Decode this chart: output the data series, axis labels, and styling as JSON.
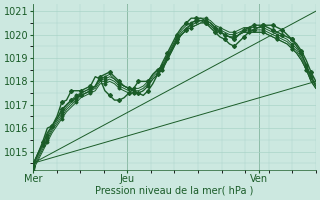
{
  "xlabel": "Pression niveau de la mer( hPa )",
  "bg_color": "#cce8e0",
  "grid_color": "#aad4c8",
  "line_color": "#1a5c28",
  "ylim": [
    1014.2,
    1021.3
  ],
  "xlim": [
    0,
    60
  ],
  "yticks": [
    1015,
    1016,
    1017,
    1018,
    1019,
    1020,
    1021
  ],
  "day_ticks": [
    0,
    20,
    48
  ],
  "day_labels": [
    "Mer",
    "Jeu",
    "Ven"
  ],
  "ensemble_lines": [
    [
      1014.4,
      1014.8,
      1015.2,
      1015.6,
      1016.0,
      1016.3,
      1016.6,
      1016.9,
      1017.1,
      1017.3,
      1017.5,
      1017.6,
      1017.7,
      1017.8,
      1018.1,
      1018.1,
      1018.2,
      1018.1,
      1017.9,
      1017.8,
      1017.7,
      1017.6,
      1017.6,
      1017.7,
      1017.9,
      1018.2,
      1018.4,
      1018.6,
      1019.0,
      1019.4,
      1019.8,
      1020.1,
      1020.3,
      1020.4,
      1020.5,
      1020.6,
      1020.6,
      1020.5,
      1020.3,
      1020.2,
      1020.1,
      1020.0,
      1020.0,
      1020.1,
      1020.2,
      1020.2,
      1020.2,
      1020.2,
      1020.2,
      1020.1,
      1020.0,
      1019.9,
      1019.8,
      1019.7,
      1019.5,
      1019.3,
      1019.0,
      1018.6,
      1018.1,
      1017.8
    ],
    [
      1014.3,
      1014.7,
      1015.1,
      1015.5,
      1015.9,
      1016.2,
      1016.5,
      1016.8,
      1017.0,
      1017.2,
      1017.4,
      1017.5,
      1017.6,
      1017.7,
      1018.0,
      1018.0,
      1018.1,
      1018.0,
      1017.8,
      1017.7,
      1017.6,
      1017.5,
      1017.5,
      1017.6,
      1017.8,
      1018.1,
      1018.3,
      1018.5,
      1018.9,
      1019.3,
      1019.7,
      1020.0,
      1020.2,
      1020.3,
      1020.4,
      1020.5,
      1020.5,
      1020.4,
      1020.2,
      1020.1,
      1020.0,
      1019.9,
      1019.9,
      1020.0,
      1020.1,
      1020.1,
      1020.1,
      1020.1,
      1020.1,
      1020.0,
      1019.9,
      1019.8,
      1019.7,
      1019.6,
      1019.4,
      1019.2,
      1018.9,
      1018.5,
      1018.0,
      1017.7
    ],
    [
      1014.5,
      1014.9,
      1015.3,
      1015.7,
      1016.1,
      1016.4,
      1016.7,
      1017.0,
      1017.2,
      1017.4,
      1017.5,
      1017.6,
      1017.7,
      1017.8,
      1018.1,
      1018.2,
      1018.3,
      1018.1,
      1017.9,
      1017.8,
      1017.7,
      1017.7,
      1017.7,
      1017.8,
      1018.0,
      1018.3,
      1018.5,
      1018.7,
      1019.1,
      1019.5,
      1019.9,
      1020.2,
      1020.4,
      1020.5,
      1020.6,
      1020.7,
      1020.7,
      1020.6,
      1020.4,
      1020.3,
      1020.2,
      1020.1,
      1020.1,
      1020.2,
      1020.3,
      1020.3,
      1020.3,
      1020.3,
      1020.3,
      1020.2,
      1020.1,
      1020.0,
      1019.9,
      1019.8,
      1019.6,
      1019.4,
      1019.1,
      1018.7,
      1018.2,
      1017.9
    ],
    [
      1014.2,
      1014.6,
      1015.0,
      1015.4,
      1015.8,
      1016.1,
      1016.4,
      1016.7,
      1016.9,
      1017.1,
      1017.3,
      1017.4,
      1017.5,
      1017.6,
      1017.9,
      1017.9,
      1018.0,
      1017.9,
      1017.7,
      1017.6,
      1017.5,
      1017.5,
      1017.5,
      1017.6,
      1017.8,
      1018.1,
      1018.3,
      1018.5,
      1018.9,
      1019.3,
      1019.7,
      1020.0,
      1020.2,
      1020.3,
      1020.4,
      1020.5,
      1020.5,
      1020.4,
      1020.2,
      1020.1,
      1020.0,
      1019.9,
      1019.9,
      1020.0,
      1020.1,
      1020.1,
      1020.1,
      1020.1,
      1020.1,
      1020.0,
      1019.9,
      1019.8,
      1019.7,
      1019.6,
      1019.4,
      1019.2,
      1018.9,
      1018.5,
      1018.0,
      1017.7
    ]
  ],
  "wiggly_lines": [
    [
      1014.4,
      1014.9,
      1015.4,
      1016.0,
      1016.1,
      1016.5,
      1017.1,
      1017.2,
      1017.6,
      1017.6,
      1017.6,
      1017.7,
      1017.8,
      1018.2,
      1018.1,
      1017.6,
      1017.4,
      1017.2,
      1017.2,
      1017.3,
      1017.5,
      1017.7,
      1018.0,
      1018.0,
      1018.0,
      1018.3,
      1018.5,
      1018.6,
      1019.0,
      1019.4,
      1019.8,
      1020.0,
      1020.2,
      1020.5,
      1020.6,
      1020.6,
      1020.5,
      1020.3,
      1020.1,
      1019.9,
      1019.8,
      1019.6,
      1019.5,
      1019.7,
      1019.9,
      1020.1,
      1020.2,
      1020.3,
      1020.4,
      1020.4,
      1020.4,
      1020.3,
      1020.2,
      1020.0,
      1019.8,
      1019.5,
      1019.2,
      1018.7,
      1018.2,
      1017.8
    ],
    [
      1014.4,
      1014.9,
      1015.3,
      1015.8,
      1016.1,
      1016.4,
      1016.8,
      1017.0,
      1017.2,
      1017.3,
      1017.4,
      1017.5,
      1017.6,
      1017.8,
      1018.2,
      1018.3,
      1018.4,
      1018.2,
      1018.0,
      1017.8,
      1017.7,
      1017.6,
      1017.5,
      1017.4,
      1017.6,
      1017.9,
      1018.3,
      1018.8,
      1019.2,
      1019.6,
      1020.0,
      1020.3,
      1020.5,
      1020.7,
      1020.7,
      1020.7,
      1020.6,
      1020.5,
      1020.3,
      1020.1,
      1020.0,
      1019.9,
      1019.8,
      1020.0,
      1020.2,
      1020.3,
      1020.4,
      1020.4,
      1020.4,
      1020.3,
      1020.2,
      1020.1,
      1020.0,
      1019.9,
      1019.8,
      1019.6,
      1019.3,
      1018.9,
      1018.4,
      1018.0
    ]
  ],
  "straight_lines": [
    [
      1014.5,
      1021.0
    ],
    [
      1014.5,
      1018.0
    ]
  ],
  "straight_line_x": [
    0,
    60
  ]
}
